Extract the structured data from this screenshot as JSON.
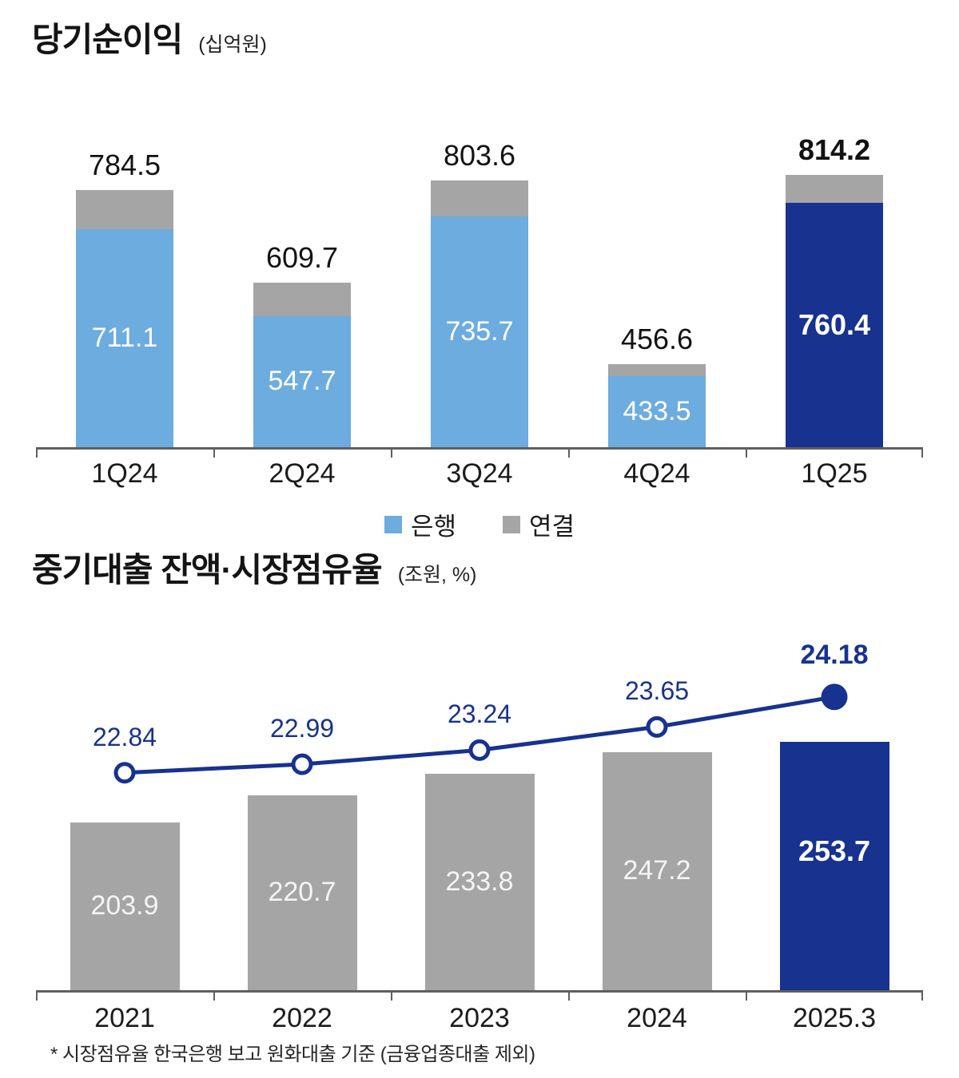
{
  "colors": {
    "bank_blue": "#6CACDF",
    "consolidated_gray": "#A5A5A5",
    "highlight_navy": "#17328F",
    "axis_gray": "#5f5f5f",
    "label_black": "#121212",
    "label_white": "#ffffff"
  },
  "chart1": {
    "title": "당기순이익",
    "unit": "(십억원)",
    "legend": [
      {
        "label": "은행",
        "color": "#6CACDF"
      },
      {
        "label": "연결",
        "color": "#A5A5A5"
      }
    ],
    "chart_data": {
      "type": "bar",
      "stacked": true,
      "categories": [
        "1Q24",
        "2Q24",
        "3Q24",
        "4Q24",
        "1Q25"
      ],
      "series": [
        {
          "name": "은행",
          "values": [
            711.1,
            547.7,
            735.7,
            433.5,
            760.4
          ]
        }
      ],
      "totals": [
        784.5,
        609.7,
        803.6,
        456.6,
        814.2
      ],
      "total_labels": [
        "784.5",
        "609.7",
        "803.6",
        "456.6",
        "814.2"
      ],
      "bank_labels": [
        "711.1",
        "547.7",
        "735.7",
        "433.5",
        "760.4"
      ],
      "legend_entries": [
        "은행",
        "연결"
      ],
      "ylim": [
        300,
        850
      ],
      "grid": false,
      "highlight_index": 4,
      "title": "당기순이익 (십억원)"
    }
  },
  "chart2": {
    "title": "중기대출 잔액·시장점유율",
    "unit": "(조원, %)",
    "footnote": "* 시장점유율 한국은행 보고 원화대출 기준 (금융업종대출 제외)",
    "chart_data": {
      "type": "bar+line",
      "categories": [
        "2021",
        "2022",
        "2023",
        "2024",
        "2025.3"
      ],
      "bar_series": {
        "name": "중기대출 잔액(조원)",
        "values": [
          203.9,
          220.7,
          233.8,
          247.2,
          253.7
        ]
      },
      "line_series": {
        "name": "시장점유율(%)",
        "values": [
          22.84,
          22.99,
          23.24,
          23.65,
          24.18
        ]
      },
      "bar_labels": [
        "203.9",
        "220.7",
        "233.8",
        "247.2",
        "253.7"
      ],
      "line_labels": [
        "22.84",
        "22.99",
        "23.24",
        "23.65",
        "24.18"
      ],
      "bar_ylim": [
        100,
        260
      ],
      "line_ylim": [
        19,
        25.5
      ],
      "grid": false,
      "highlight_index": 4,
      "title": "중기대출 잔액·시장점유율 (조원, %)"
    }
  }
}
